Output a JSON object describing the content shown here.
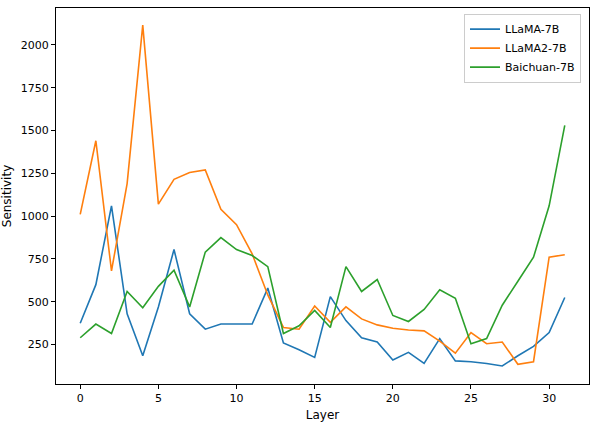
{
  "chart_data": {
    "type": "line",
    "x_label": "Layer",
    "y_label": "Sensitivity",
    "x": [
      0,
      1,
      2,
      3,
      4,
      5,
      6,
      7,
      8,
      9,
      10,
      11,
      12,
      13,
      14,
      15,
      16,
      17,
      18,
      19,
      20,
      21,
      22,
      23,
      24,
      25,
      26,
      27,
      28,
      29,
      30,
      31
    ],
    "series": [
      {
        "name": "LLaMA-7B",
        "color": "#1f77b4",
        "values": [
          375,
          600,
          1060,
          430,
          185,
          470,
          805,
          430,
          340,
          370,
          370,
          370,
          580,
          260,
          220,
          175,
          530,
          390,
          290,
          265,
          160,
          205,
          140,
          285,
          155,
          150,
          140,
          125,
          185,
          240,
          320,
          525
        ]
      },
      {
        "name": "LLaMA2-7B",
        "color": "#ff7f0e",
        "values": [
          1010,
          1440,
          680,
          1190,
          2115,
          1070,
          1215,
          1255,
          1270,
          1040,
          950,
          780,
          540,
          350,
          340,
          475,
          380,
          470,
          400,
          365,
          345,
          335,
          330,
          270,
          200,
          320,
          255,
          265,
          135,
          150,
          760,
          775
        ]
      },
      {
        "name": "Baichuan-7B",
        "color": "#2ca02c",
        "values": [
          290,
          370,
          315,
          560,
          465,
          590,
          685,
          470,
          790,
          875,
          805,
          770,
          705,
          315,
          360,
          450,
          350,
          705,
          560,
          630,
          420,
          385,
          455,
          570,
          520,
          255,
          285,
          480,
          620,
          760,
          1060,
          1530
        ]
      }
    ],
    "xlim": [
      -1.55,
      32.55
    ],
    "ylim": [
      20,
      2215
    ],
    "xticks": [
      0,
      5,
      10,
      15,
      20,
      25,
      30
    ],
    "yticks": [
      250,
      500,
      750,
      1000,
      1250,
      1500,
      1750,
      2000
    ],
    "grid": false,
    "legend": "upper right"
  }
}
